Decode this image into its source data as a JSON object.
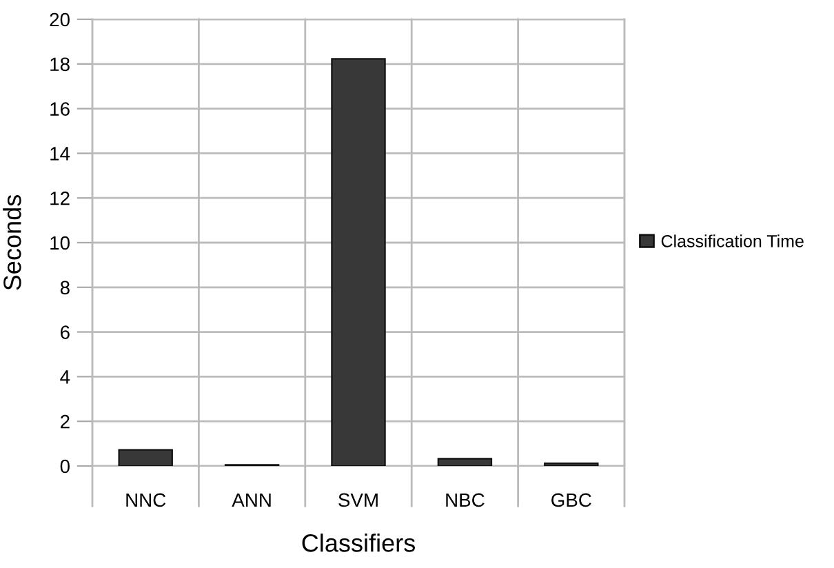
{
  "chart_data": {
    "type": "bar",
    "xlabel": "Classifiers",
    "ylabel": "Seconds",
    "categories": [
      "NNC",
      "ANN",
      "SVM",
      "NBC",
      "GBC"
    ],
    "series": [
      {
        "name": "Classification Time",
        "color": "#383838",
        "values": [
          0.72,
          0.05,
          18.23,
          0.33,
          0.12
        ]
      }
    ],
    "ylim": [
      0,
      20
    ],
    "yticks": [
      0,
      2,
      4,
      6,
      8,
      10,
      12,
      14,
      16,
      18,
      20
    ],
    "grid": true,
    "legend": "right"
  }
}
